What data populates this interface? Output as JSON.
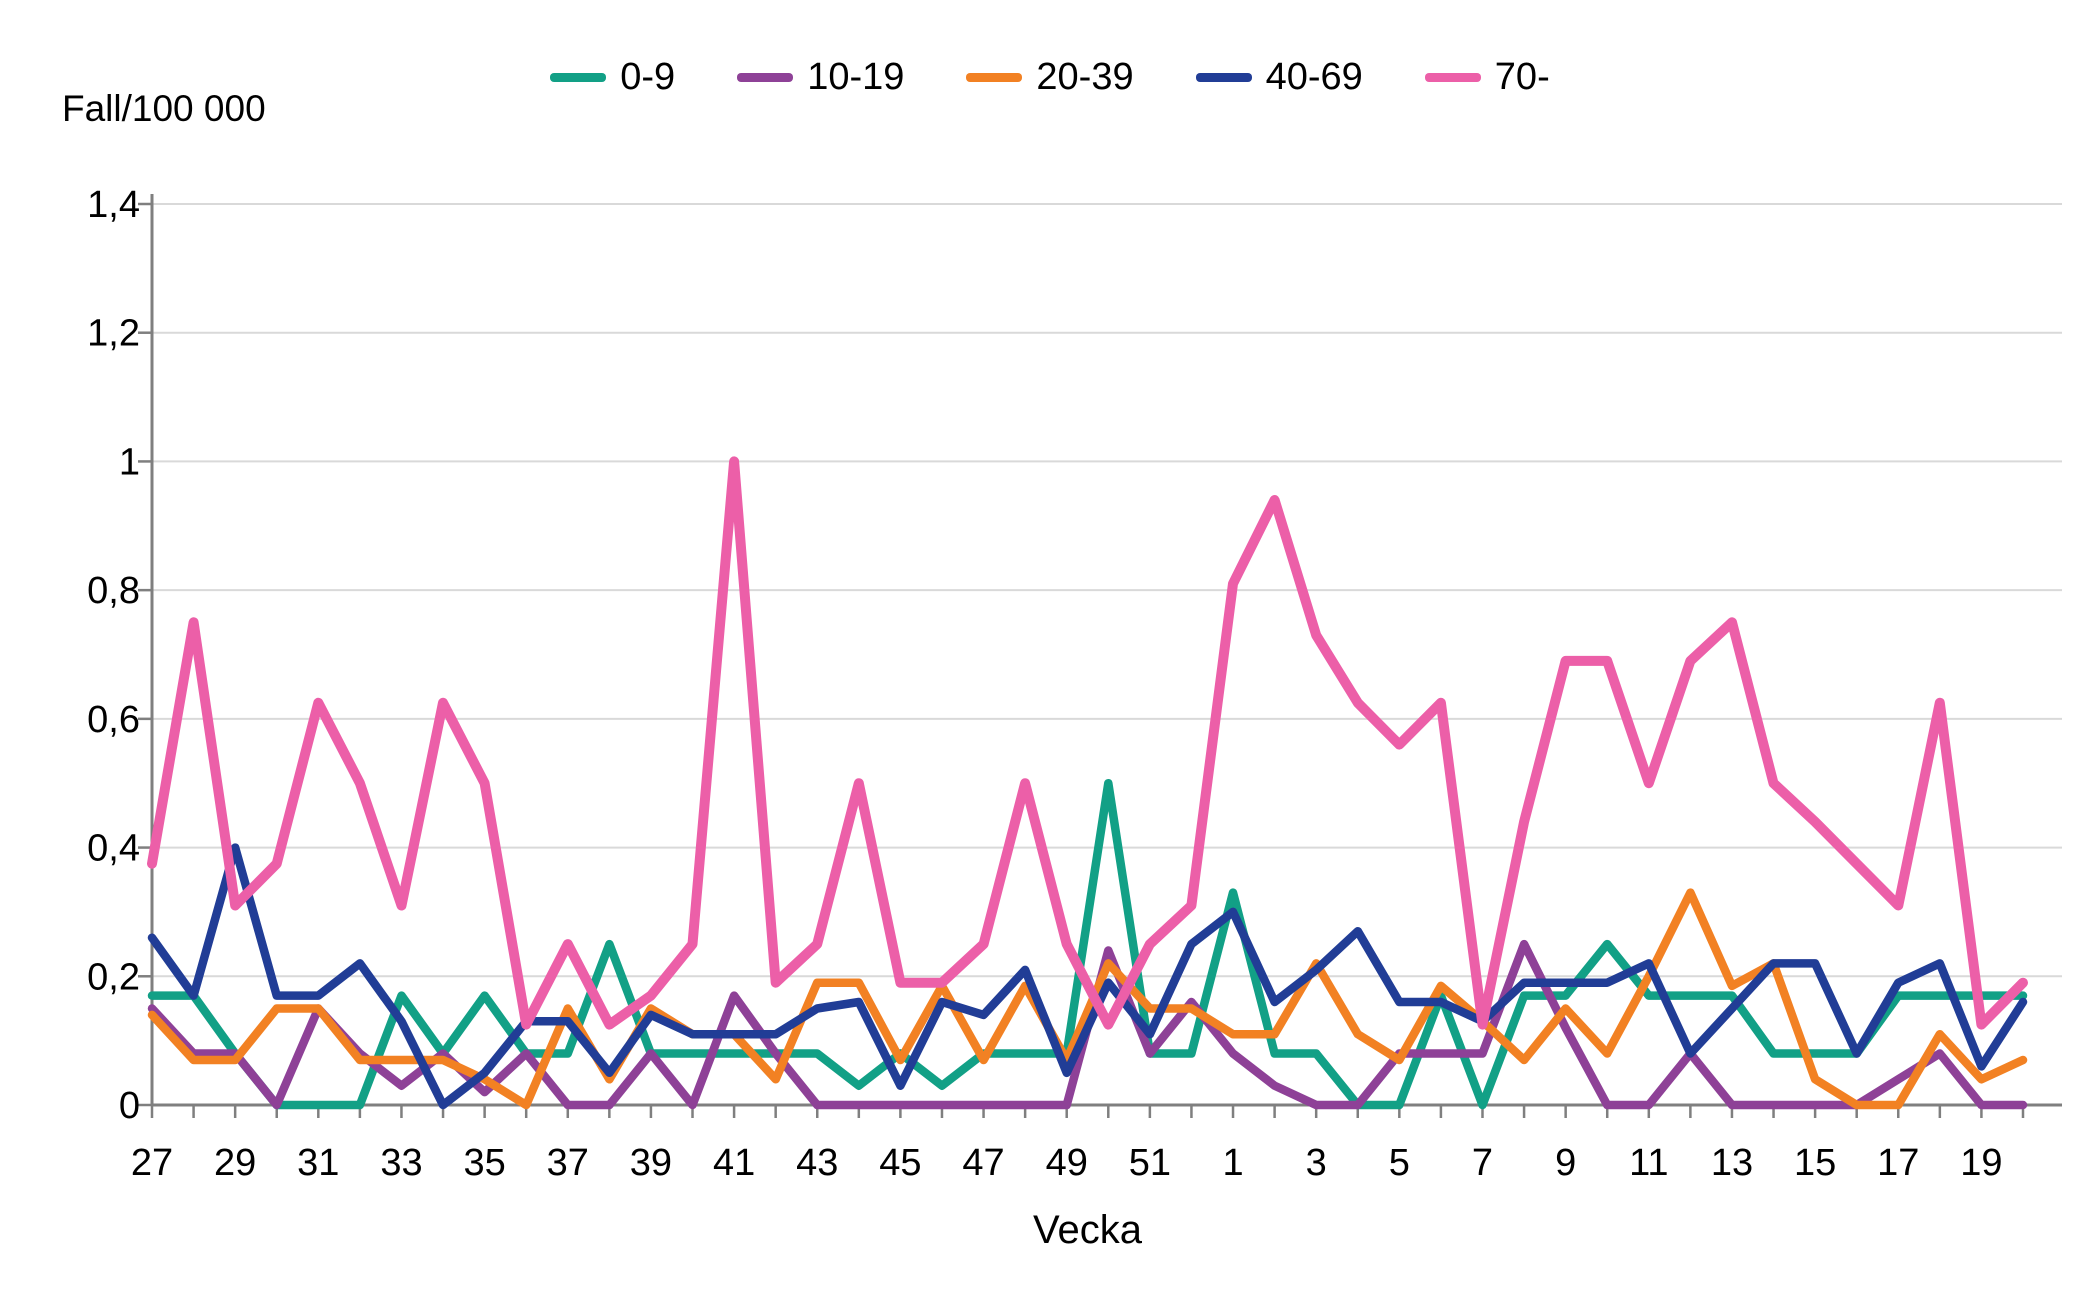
{
  "header": {
    "title": "Fall/100 000"
  },
  "chart_data": {
    "type": "line",
    "title": "Fall/100 000",
    "xlabel": "Vecka",
    "ylabel": "Fall/100 000",
    "ylim": [
      0,
      1.4
    ],
    "ytick_labels": [
      "0",
      "0,2",
      "0,4",
      "0,6",
      "0,8",
      "1",
      "1,2",
      "1,4"
    ],
    "ytick_values": [
      0,
      0.2,
      0.4,
      0.6,
      0.8,
      1.0,
      1.2,
      1.4
    ],
    "grid": "horizontal",
    "legend_position": "top",
    "categories": [
      "27",
      "28",
      "29",
      "30",
      "31",
      "32",
      "33",
      "34",
      "35",
      "36",
      "37",
      "38",
      "39",
      "40",
      "41",
      "42",
      "43",
      "44",
      "45",
      "46",
      "47",
      "48",
      "49",
      "50",
      "51",
      "52",
      "1",
      "2",
      "3",
      "4",
      "5",
      "6",
      "7",
      "8",
      "9",
      "10",
      "11",
      "12",
      "13",
      "14",
      "15",
      "16",
      "17",
      "18",
      "19",
      "20"
    ],
    "xtick_label_every": 2,
    "series": [
      {
        "name": "0-9",
        "color": "#12A086",
        "values": [
          0.17,
          0.17,
          0.08,
          0,
          0,
          0,
          0.17,
          0.08,
          0.17,
          0.08,
          0.08,
          0.25,
          0.08,
          0.08,
          0.08,
          0.08,
          0.08,
          0.03,
          0.08,
          0.03,
          0.08,
          0.08,
          0.08,
          0.5,
          0.08,
          0.08,
          0.33,
          0.08,
          0.08,
          0,
          0,
          0.17,
          0,
          0.17,
          0.17,
          0.25,
          0.17,
          0.17,
          0.17,
          0.08,
          0.08,
          0.08,
          0.17,
          0.17,
          0.17,
          0.17
        ]
      },
      {
        "name": "10-19",
        "color": "#8E4197",
        "values": [
          0.15,
          0.08,
          0.08,
          0,
          0.15,
          0.08,
          0.03,
          0.08,
          0.02,
          0.08,
          0,
          0,
          0.08,
          0,
          0.17,
          0.08,
          0,
          0,
          0,
          0,
          0,
          0,
          0,
          0.24,
          0.08,
          0.16,
          0.08,
          0.03,
          0,
          0,
          0.08,
          0.08,
          0.08,
          0.25,
          0.12,
          0,
          0,
          0.08,
          0,
          0,
          0,
          0,
          0.04,
          0.08,
          0,
          0
        ]
      },
      {
        "name": "20-39",
        "color": "#F28123",
        "values": [
          0.14,
          0.07,
          0.07,
          0.15,
          0.15,
          0.07,
          0.07,
          0.07,
          0.04,
          0,
          0.15,
          0.04,
          0.15,
          0.11,
          0.11,
          0.04,
          0.19,
          0.19,
          0.07,
          0.185,
          0.07,
          0.185,
          0.07,
          0.22,
          0.15,
          0.15,
          0.11,
          0.11,
          0.22,
          0.11,
          0.07,
          0.185,
          0.13,
          0.07,
          0.15,
          0.08,
          0.2,
          0.33,
          0.185,
          0.22,
          0.04,
          0,
          0,
          0.11,
          0.04,
          0.07
        ]
      },
      {
        "name": "40-69",
        "color": "#213D96",
        "values": [
          0.26,
          0.17,
          0.4,
          0.17,
          0.17,
          0.22,
          0.13,
          0,
          0.05,
          0.13,
          0.13,
          0.05,
          0.14,
          0.11,
          0.11,
          0.11,
          0.15,
          0.16,
          0.03,
          0.16,
          0.14,
          0.21,
          0.05,
          0.19,
          0.11,
          0.25,
          0.3,
          0.16,
          0.21,
          0.27,
          0.16,
          0.16,
          0.13,
          0.19,
          0.19,
          0.19,
          0.22,
          0.08,
          0.15,
          0.22,
          0.22,
          0.08,
          0.19,
          0.22,
          0.06,
          0.16
        ]
      },
      {
        "name": "70-",
        "color": "#EC5FA8",
        "values": [
          0.375,
          0.75,
          0.31,
          0.375,
          0.625,
          0.5,
          0.31,
          0.625,
          0.5,
          0.125,
          0.25,
          0.125,
          0.17,
          0.25,
          1.0,
          0.19,
          0.25,
          0.5,
          0.19,
          0.19,
          0.25,
          0.5,
          0.25,
          0.125,
          0.25,
          0.31,
          0.81,
          0.94,
          0.73,
          0.625,
          0.56,
          0.625,
          0.125,
          0.44,
          0.69,
          0.69,
          0.5,
          0.69,
          0.75,
          0.5,
          0.44,
          0.375,
          0.31,
          0.625,
          0.125,
          0.19
        ]
      }
    ],
    "colors": {
      "gridline": "#D9D9D9",
      "axis": "#7F7F7F",
      "text": "#000000",
      "background": "#FFFFFF"
    }
  }
}
